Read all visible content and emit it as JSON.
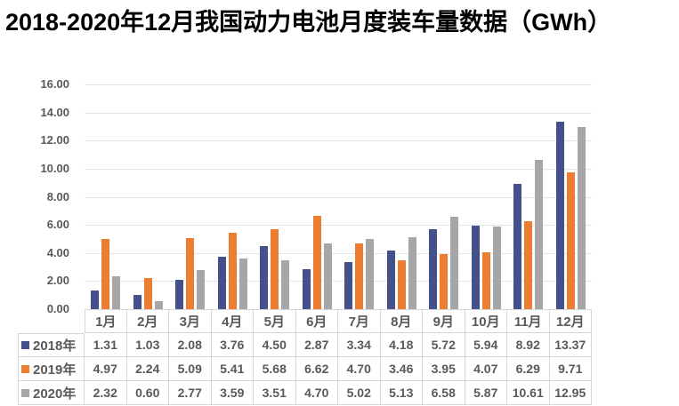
{
  "title": "2018-2020年12月我国动力电池月度装车量数据（GWh）",
  "chart_data": {
    "type": "bar",
    "title": "2018-2020年12月我国动力电池月度装车量数据（GWh）",
    "unit": "GWh",
    "categories": [
      "1月",
      "2月",
      "3月",
      "4月",
      "5月",
      "6月",
      "7月",
      "8月",
      "9月",
      "10月",
      "11月",
      "12月"
    ],
    "series": [
      {
        "name": "2018年",
        "color": "#44508a",
        "values": [
          1.31,
          1.03,
          2.08,
          3.76,
          4.5,
          2.87,
          3.34,
          4.18,
          5.72,
          5.94,
          8.92,
          13.37
        ]
      },
      {
        "name": "2019年",
        "color": "#ed7d31",
        "values": [
          4.97,
          2.24,
          5.09,
          5.41,
          5.68,
          6.62,
          4.7,
          3.46,
          3.95,
          4.07,
          6.29,
          9.71
        ]
      },
      {
        "name": "2020年",
        "color": "#a6a6a6",
        "values": [
          2.32,
          0.6,
          2.77,
          3.59,
          3.51,
          4.7,
          5.02,
          5.13,
          6.58,
          5.87,
          10.61,
          12.95
        ]
      }
    ],
    "ylim": [
      0,
      16
    ],
    "ytick_step": 2,
    "yticks": [
      "16.00",
      "14.00",
      "12.00",
      "10.00",
      "8.00",
      "6.00",
      "4.00",
      "2.00",
      "0.00"
    ],
    "grid": true,
    "legend_position": "data-table-rows",
    "value_decimals": 2
  },
  "colors": {
    "background": "#ffffff",
    "title_text": "#000000",
    "axis_text": "#595959",
    "table_text": "#595959",
    "gridline": "#e2e4e8",
    "table_border": "#d6d6d6"
  }
}
